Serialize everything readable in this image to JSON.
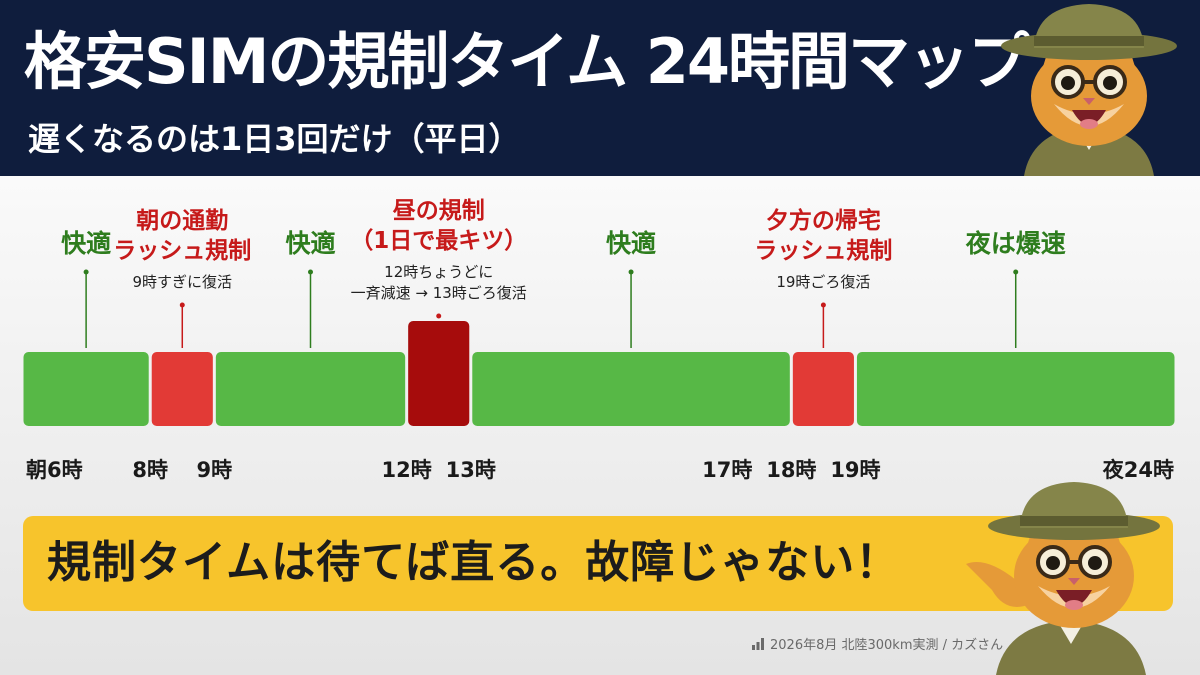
{
  "header": {
    "title": "格安SIMの規制タイム 24時間マップ",
    "subtitle": "遅くなるのは1日3回だけ（平日）"
  },
  "chart_data": {
    "type": "timeline",
    "x_range": [
      6,
      24
    ],
    "segments": [
      {
        "start": 6,
        "end": 8,
        "status": "comfortable",
        "label": [
          "快適"
        ],
        "note": []
      },
      {
        "start": 8,
        "end": 9,
        "status": "throttled",
        "label": [
          "朝の通勤",
          "ラッシュ規制"
        ],
        "note": [
          "9時すぎに復活"
        ]
      },
      {
        "start": 9,
        "end": 12,
        "status": "comfortable",
        "label": [
          "快適"
        ],
        "note": []
      },
      {
        "start": 12,
        "end": 13,
        "status": "severe",
        "label": [
          "昼の規制",
          "（1日で最キツ）"
        ],
        "note": [
          "12時ちょうどに",
          "一斉減速 → 13時ごろ復活"
        ]
      },
      {
        "start": 13,
        "end": 18,
        "status": "comfortable",
        "label": [
          "快適"
        ],
        "note": []
      },
      {
        "start": 18,
        "end": 19,
        "status": "throttled",
        "label": [
          "夕方の帰宅",
          "ラッシュ規制"
        ],
        "note": [
          "19時ごろ復活"
        ]
      },
      {
        "start": 19,
        "end": 24,
        "status": "fast",
        "label": [
          "夜は爆速"
        ],
        "note": []
      }
    ],
    "ticks": [
      {
        "t": 6,
        "label": "朝6時"
      },
      {
        "t": 8,
        "label": "8時"
      },
      {
        "t": 9,
        "label": "9時"
      },
      {
        "t": 12,
        "label": "12時"
      },
      {
        "t": 13,
        "label": "13時"
      },
      {
        "t": 17,
        "label": "17時"
      },
      {
        "t": 18,
        "label": "18時"
      },
      {
        "t": 19,
        "label": "19時"
      },
      {
        "t": 24,
        "label": "夜24時"
      }
    ],
    "colors": {
      "comfortable": "#57b846",
      "fast": "#57b846",
      "throttled": "#e23a36",
      "severe": "#a60c0c",
      "green_text": "#2e7d1e",
      "red_text": "#c61a1a"
    }
  },
  "message": {
    "text": "規制タイムは待てば直る。故障じゃない！"
  },
  "credit": {
    "icon": "bar-chart-icon",
    "text": "2026年8月 北陸300km実測 / カズさん"
  },
  "illustrations": {
    "top": "cat-mascot-explorer-icon",
    "bottom": "cat-mascot-pointing-icon"
  }
}
